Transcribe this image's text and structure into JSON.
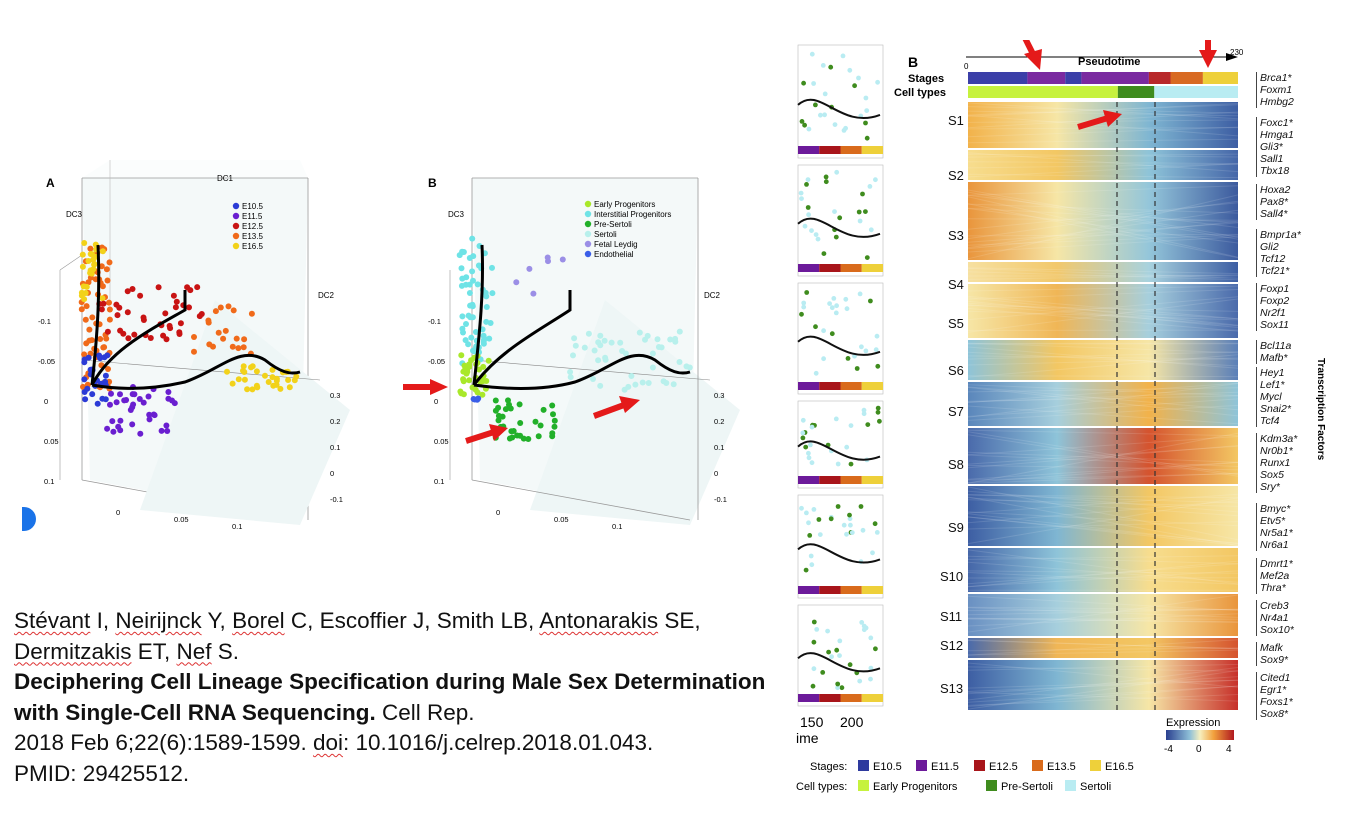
{
  "figure_left": {
    "panel_a": {
      "label": "A",
      "axis_labels": {
        "dc1": "DC1",
        "dc2": "DC2",
        "dc3": "DC3"
      },
      "legend": [
        {
          "label": "E10.5",
          "color": "#2b3bd6"
        },
        {
          "label": "E11.5",
          "color": "#6a1fd0"
        },
        {
          "label": "E12.5",
          "color": "#c81414"
        },
        {
          "label": "E13.5",
          "color": "#f06a1a"
        },
        {
          "label": "E16.5",
          "color": "#f2d21a"
        }
      ],
      "ticks_left": [
        "-0.1",
        "-0.05",
        "0",
        "0.05",
        "0.1"
      ],
      "ticks_bottom": [
        "0",
        "0.05",
        "0.1"
      ],
      "ticks_right": [
        "0.3",
        "0.2",
        "0.1",
        "0",
        "-0.1"
      ]
    },
    "panel_b": {
      "label": "B",
      "axis_labels": {
        "dc2": "DC2",
        "dc3": "DC3"
      },
      "legend": [
        {
          "label": "Early Progenitors",
          "color": "#a9e82a"
        },
        {
          "label": "Interstitial Progenitors",
          "color": "#6fe3e6"
        },
        {
          "label": "Pre-Sertoli",
          "color": "#22b02a"
        },
        {
          "label": "Sertoli",
          "color": "#b8f0ec"
        },
        {
          "label": "Fetal Leydig",
          "color": "#9b8fe6"
        },
        {
          "label": "Endothelial",
          "color": "#3a5ee8"
        }
      ],
      "ticks_left": [
        "-0.1",
        "-0.05",
        "0",
        "0.05",
        "0.1"
      ],
      "ticks_bottom": [
        "0",
        "0.05",
        "0.1"
      ],
      "ticks_right": [
        "0.3",
        "0.2",
        "0.1",
        "0",
        "-0.1"
      ]
    }
  },
  "citation": {
    "authors": [
      {
        "name": "Stévant",
        "suffix": " I, "
      },
      {
        "name": "Neirijnck",
        "suffix": " Y, "
      },
      {
        "name": "Borel",
        "suffix": " C, Escoffier J, Smith LB, "
      },
      {
        "name": "Antonarakis",
        "suffix": " SE, "
      },
      {
        "name": "Dermitzakis",
        "suffix": " ET, "
      },
      {
        "name": "Nef",
        "suffix": " S."
      }
    ],
    "title": "Deciphering Cell Lineage Specification during Male Sex Determination with Single-Cell RNA Sequencing.",
    "journal": " Cell Rep.",
    "line3a": "2018 Feb 6;22(6):1589-1599. ",
    "doi_label": "doi",
    "line3b": ": 10.1016/j.celrep.2018.01.043.",
    "pmid": "PMID: 29425512."
  },
  "figure_right": {
    "panel_label": "B",
    "pseudotime_label": "Pseudotime",
    "pseudotime_start": "0",
    "pseudotime_end": "230",
    "row_labels": {
      "stages": "Stages",
      "cell_types": "Cell types"
    },
    "x_ticks": [
      "150",
      "200"
    ],
    "x_axis_partial": "ime",
    "segments": [
      "S1",
      "S2",
      "S3",
      "S4",
      "S5",
      "S6",
      "S7",
      "S8",
      "S9",
      "S10",
      "S11",
      "S12",
      "S13"
    ],
    "gene_groups": [
      [
        "Brca1*",
        "Foxm1",
        "Hmbg2"
      ],
      [
        "Foxc1*",
        "Hmga1",
        "Gli3*",
        "Sall1",
        "Tbx18"
      ],
      [
        "Hoxa2",
        "Pax8*",
        "Sall4*"
      ],
      [
        "Bmpr1a*",
        "Gli2",
        "Tcf12",
        "Tcf21*"
      ],
      [
        "Foxp1",
        "Foxp2",
        "Nr2f1",
        "Sox11"
      ],
      [
        "Bcl11a",
        "Mafb*"
      ],
      [
        "Hey1",
        "Lef1*",
        "Mycl",
        "Snai2*",
        "Tcf4"
      ],
      [
        "Kdm3a*",
        "Nr0b1*",
        "Runx1",
        "Sox5",
        "Sry*"
      ],
      [
        "Bmyc*",
        "Etv5*",
        "Nr5a1*",
        "Nr6a1"
      ],
      [
        "Dmrt1*",
        "Mef2a",
        "Thra*"
      ],
      [
        "Creb3",
        "Nr4a1",
        "Sox10*"
      ],
      [
        "Mafk",
        "Sox9*"
      ],
      [
        "Cited1",
        "Egr1*",
        "Foxs1*",
        "Sox8*"
      ]
    ],
    "side_label": "Transcription Factors",
    "expression_legend": {
      "title": "Expression",
      "ticks": [
        "-4",
        "0",
        "4"
      ]
    },
    "stages_legend": {
      "title": "Stages:",
      "items": [
        {
          "label": "E10.5",
          "color": "#2e3a9e"
        },
        {
          "label": "E11.5",
          "color": "#6c1a9a"
        },
        {
          "label": "E12.5",
          "color": "#a8151a"
        },
        {
          "label": "E13.5",
          "color": "#d96b1c"
        },
        {
          "label": "E16.5",
          "color": "#eed03a"
        }
      ]
    },
    "celltypes_legend": {
      "title": "Cell types:",
      "items": [
        {
          "label": "Early Progenitors",
          "color": "#c6f23e"
        },
        {
          "label": "Pre-Sertoli",
          "color": "#3f8c1e"
        },
        {
          "label": "Sertoli",
          "color": "#b9ecf2"
        }
      ]
    }
  }
}
